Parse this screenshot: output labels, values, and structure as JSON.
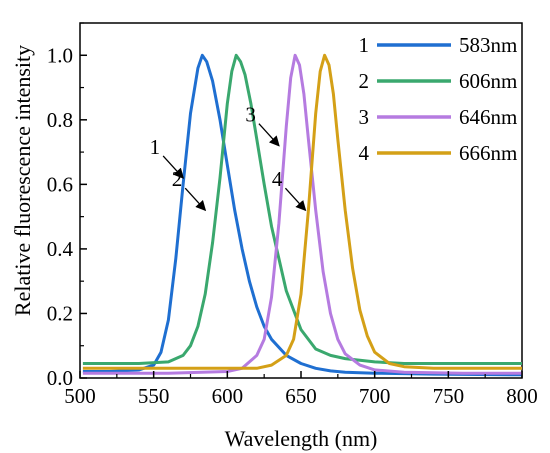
{
  "chart_data": {
    "type": "line",
    "xlabel": "Wavelength (nm)",
    "ylabel": "Relative fluorescence intensity",
    "xlim": [
      500,
      800
    ],
    "ylim": [
      0.0,
      1.1
    ],
    "x_ticks": [
      500,
      550,
      600,
      650,
      700,
      750,
      800
    ],
    "x_tick_labels": [
      "500",
      "550",
      "600",
      "650",
      "700",
      "750",
      "800"
    ],
    "y_ticks": [
      0.0,
      0.2,
      0.4,
      0.6,
      0.8,
      1.0
    ],
    "y_tick_labels": [
      "0.0",
      "0.2",
      "0.4",
      "0.6",
      "0.8",
      "1.0"
    ],
    "grid": false,
    "legend_position": "top-right",
    "series": [
      {
        "name": "583nm",
        "label": "1",
        "color": "#1f6fd1",
        "x": [
          502,
          520,
          540,
          550,
          555,
          560,
          565,
          570,
          575,
          580,
          583,
          586,
          590,
          595,
          600,
          605,
          610,
          615,
          620,
          625,
          630,
          640,
          650,
          660,
          670,
          680,
          700,
          740,
          800
        ],
        "y": [
          0.02,
          0.02,
          0.025,
          0.04,
          0.08,
          0.18,
          0.37,
          0.6,
          0.82,
          0.96,
          1.0,
          0.98,
          0.92,
          0.8,
          0.66,
          0.52,
          0.4,
          0.3,
          0.22,
          0.16,
          0.12,
          0.07,
          0.045,
          0.03,
          0.022,
          0.018,
          0.015,
          0.012,
          0.01
        ]
      },
      {
        "name": "606nm",
        "label": "2",
        "color": "#3aa86e",
        "x": [
          502,
          540,
          560,
          570,
          575,
          580,
          585,
          590,
          595,
          600,
          603,
          606,
          609,
          612,
          616,
          620,
          625,
          630,
          640,
          650,
          660,
          670,
          680,
          690,
          700,
          720,
          760,
          800
        ],
        "y": [
          0.045,
          0.045,
          0.05,
          0.07,
          0.1,
          0.16,
          0.26,
          0.42,
          0.62,
          0.85,
          0.95,
          1.0,
          0.98,
          0.94,
          0.85,
          0.74,
          0.6,
          0.47,
          0.27,
          0.15,
          0.09,
          0.07,
          0.06,
          0.055,
          0.05,
          0.045,
          0.045,
          0.045
        ]
      },
      {
        "name": "646nm",
        "label": "3",
        "color": "#b57be0",
        "x": [
          502,
          560,
          600,
          610,
          620,
          625,
          630,
          635,
          640,
          643,
          646,
          649,
          652,
          655,
          660,
          665,
          670,
          675,
          680,
          690,
          700,
          720,
          760,
          800
        ],
        "y": [
          0.015,
          0.015,
          0.02,
          0.03,
          0.07,
          0.12,
          0.25,
          0.48,
          0.78,
          0.93,
          1.0,
          0.97,
          0.88,
          0.74,
          0.52,
          0.33,
          0.2,
          0.12,
          0.075,
          0.04,
          0.025,
          0.018,
          0.015,
          0.015
        ]
      },
      {
        "name": "666nm",
        "label": "4",
        "color": "#d4a017",
        "x": [
          502,
          580,
          620,
          630,
          640,
          645,
          650,
          655,
          660,
          663,
          666,
          669,
          672,
          675,
          680,
          685,
          690,
          695,
          700,
          710,
          720,
          740,
          770,
          800
        ],
        "y": [
          0.03,
          0.03,
          0.03,
          0.04,
          0.07,
          0.12,
          0.26,
          0.52,
          0.82,
          0.95,
          1.0,
          0.97,
          0.88,
          0.74,
          0.52,
          0.34,
          0.21,
          0.13,
          0.08,
          0.045,
          0.035,
          0.03,
          0.03,
          0.03
        ]
      }
    ],
    "annotations": [
      {
        "text": "1",
        "series": "583nm",
        "arrow_to": [
          570,
          0.62
        ]
      },
      {
        "text": "2",
        "series": "606nm",
        "arrow_to": [
          585,
          0.52
        ]
      },
      {
        "text": "3",
        "series": "646nm",
        "arrow_to": [
          635,
          0.72
        ]
      },
      {
        "text": "4",
        "series": "666nm",
        "arrow_to": [
          653,
          0.52
        ]
      }
    ]
  }
}
